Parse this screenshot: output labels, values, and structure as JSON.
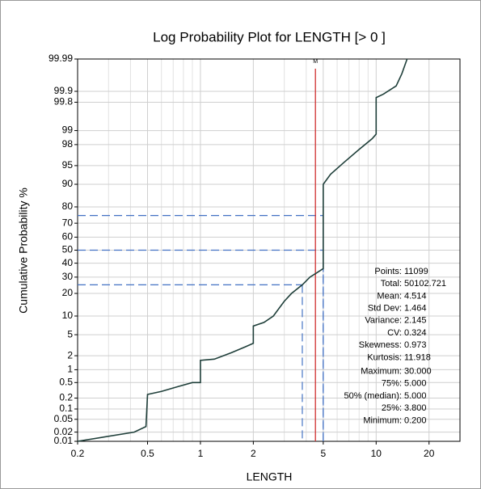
{
  "chart_data": {
    "type": "probability-line",
    "title": "Log Probability Plot for LENGTH [> 0 ]",
    "xlabel": "LENGTH",
    "ylabel": "Cumulative Probability %",
    "xscale": "log",
    "yscale": "probability",
    "grid": true,
    "x": [
      0.2,
      0.42,
      0.49,
      0.5,
      0.6,
      0.75,
      0.9,
      1.0,
      1.0,
      1.2,
      1.5,
      1.8,
      2.0,
      2.0,
      2.3,
      2.6,
      3.0,
      3.3,
      3.8,
      4.2,
      4.6,
      5.0,
      5.0,
      5.5,
      6.5,
      8,
      9.5,
      10,
      10,
      11,
      13,
      14,
      15
    ],
    "values": [
      0.01,
      0.02,
      0.03,
      0.25,
      0.3,
      0.4,
      0.5,
      0.5,
      1.6,
      1.7,
      2.3,
      3,
      3.5,
      7,
      8,
      10,
      16,
      20,
      25,
      30,
      33,
      36,
      90,
      93,
      95.5,
      97.5,
      98.5,
      98.8,
      99.85,
      99.88,
      99.93,
      99.97,
      99.99
    ],
    "color": "#1f3f3a",
    "xlim": [
      0.2,
      30
    ],
    "ylim": [
      0.01,
      99.99
    ],
    "xticks": [
      0.2,
      0.5,
      1,
      2,
      5,
      10,
      20
    ],
    "xminor": [
      0.3,
      0.4,
      0.6,
      0.7,
      0.8,
      0.9,
      3,
      4,
      6,
      7,
      8,
      9,
      30
    ],
    "yticks": [
      0.01,
      0.02,
      0.05,
      0.1,
      0.2,
      0.5,
      1,
      2,
      5,
      10,
      20,
      30,
      40,
      50,
      60,
      70,
      80,
      90,
      95,
      98,
      99,
      99.8,
      99.9,
      99.99
    ],
    "mean_marker": "M",
    "mean_color": "#d03030",
    "percentile_color": "#4472c4",
    "stats": [
      {
        "label": "Points:",
        "value": 11099
      },
      {
        "label": "Total:",
        "value": 50102.721
      },
      {
        "label": "Mean:",
        "value": 4.514,
        "color": "#e02020"
      },
      {
        "label": "Std Dev:",
        "value": 1.464
      },
      {
        "label": "Variance:",
        "value": 2.145
      },
      {
        "label": "CV:",
        "value": 0.324
      },
      {
        "label": "Skewness:",
        "value": 0.973
      },
      {
        "label": "Kurtosis:",
        "value": 11.918
      },
      {
        "label": "Maximum:",
        "value": 30,
        "value_label": "30.000"
      },
      {
        "label": "75%:",
        "value": 5,
        "value_label": "5.000",
        "color": "#2020c0",
        "probability": 75
      },
      {
        "label": "50% (median):",
        "value": 5,
        "value_label": "5.000",
        "color": "#2020c0",
        "probability": 50
      },
      {
        "label": "25%:",
        "value": 3.8,
        "value_label": "3.800",
        "color": "#2020c0",
        "probability": 25
      },
      {
        "label": "Minimum:",
        "value": 0.2,
        "value_label": "0.200"
      }
    ]
  }
}
